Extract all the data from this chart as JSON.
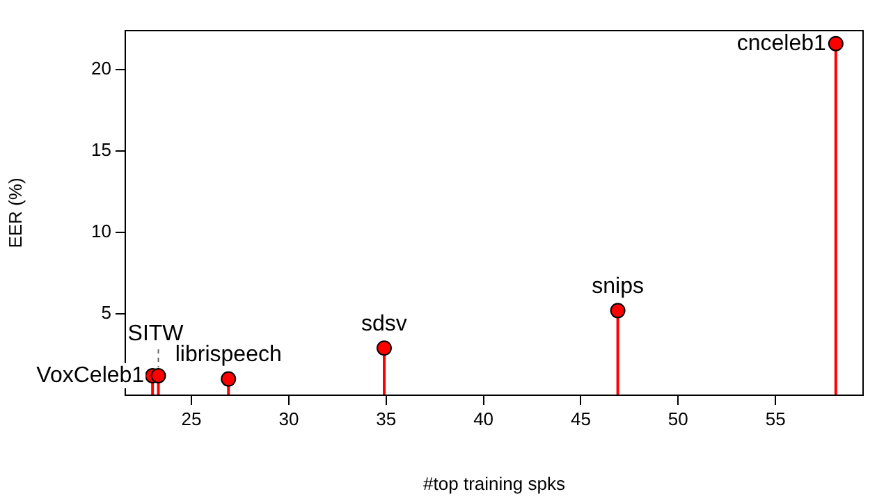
{
  "chart_data": {
    "type": "lollipop",
    "xlabel": "#top training spks",
    "ylabel": "EER (%)",
    "x": [
      23.0,
      23.3,
      26.9,
      34.9,
      46.9,
      58.1
    ],
    "values": [
      1.2,
      1.2,
      1.0,
      2.9,
      5.2,
      21.6
    ],
    "color": "#ff0000",
    "xlim": [
      21.6,
      59.5
    ],
    "xticks": [
      25,
      30,
      35,
      40,
      45,
      50,
      55
    ],
    "ylim": [
      0,
      22.4
    ],
    "yticks": [
      5,
      10,
      15,
      20
    ],
    "grid": false,
    "legend": false,
    "marker": "circle",
    "annotations": [
      {
        "text": "VoxCeleb1",
        "x": 23.0,
        "y": 1.2
      },
      {
        "text": "SITW",
        "x": 23.3,
        "y": 1.2
      },
      {
        "text": "librispeech",
        "x": 26.9,
        "y": 1.0
      },
      {
        "text": "sdsv",
        "x": 34.9,
        "y": 2.9
      },
      {
        "text": "snips",
        "x": 46.9,
        "y": 5.2
      },
      {
        "text": "cnceleb1",
        "x": 58.1,
        "y": 21.6
      }
    ]
  }
}
